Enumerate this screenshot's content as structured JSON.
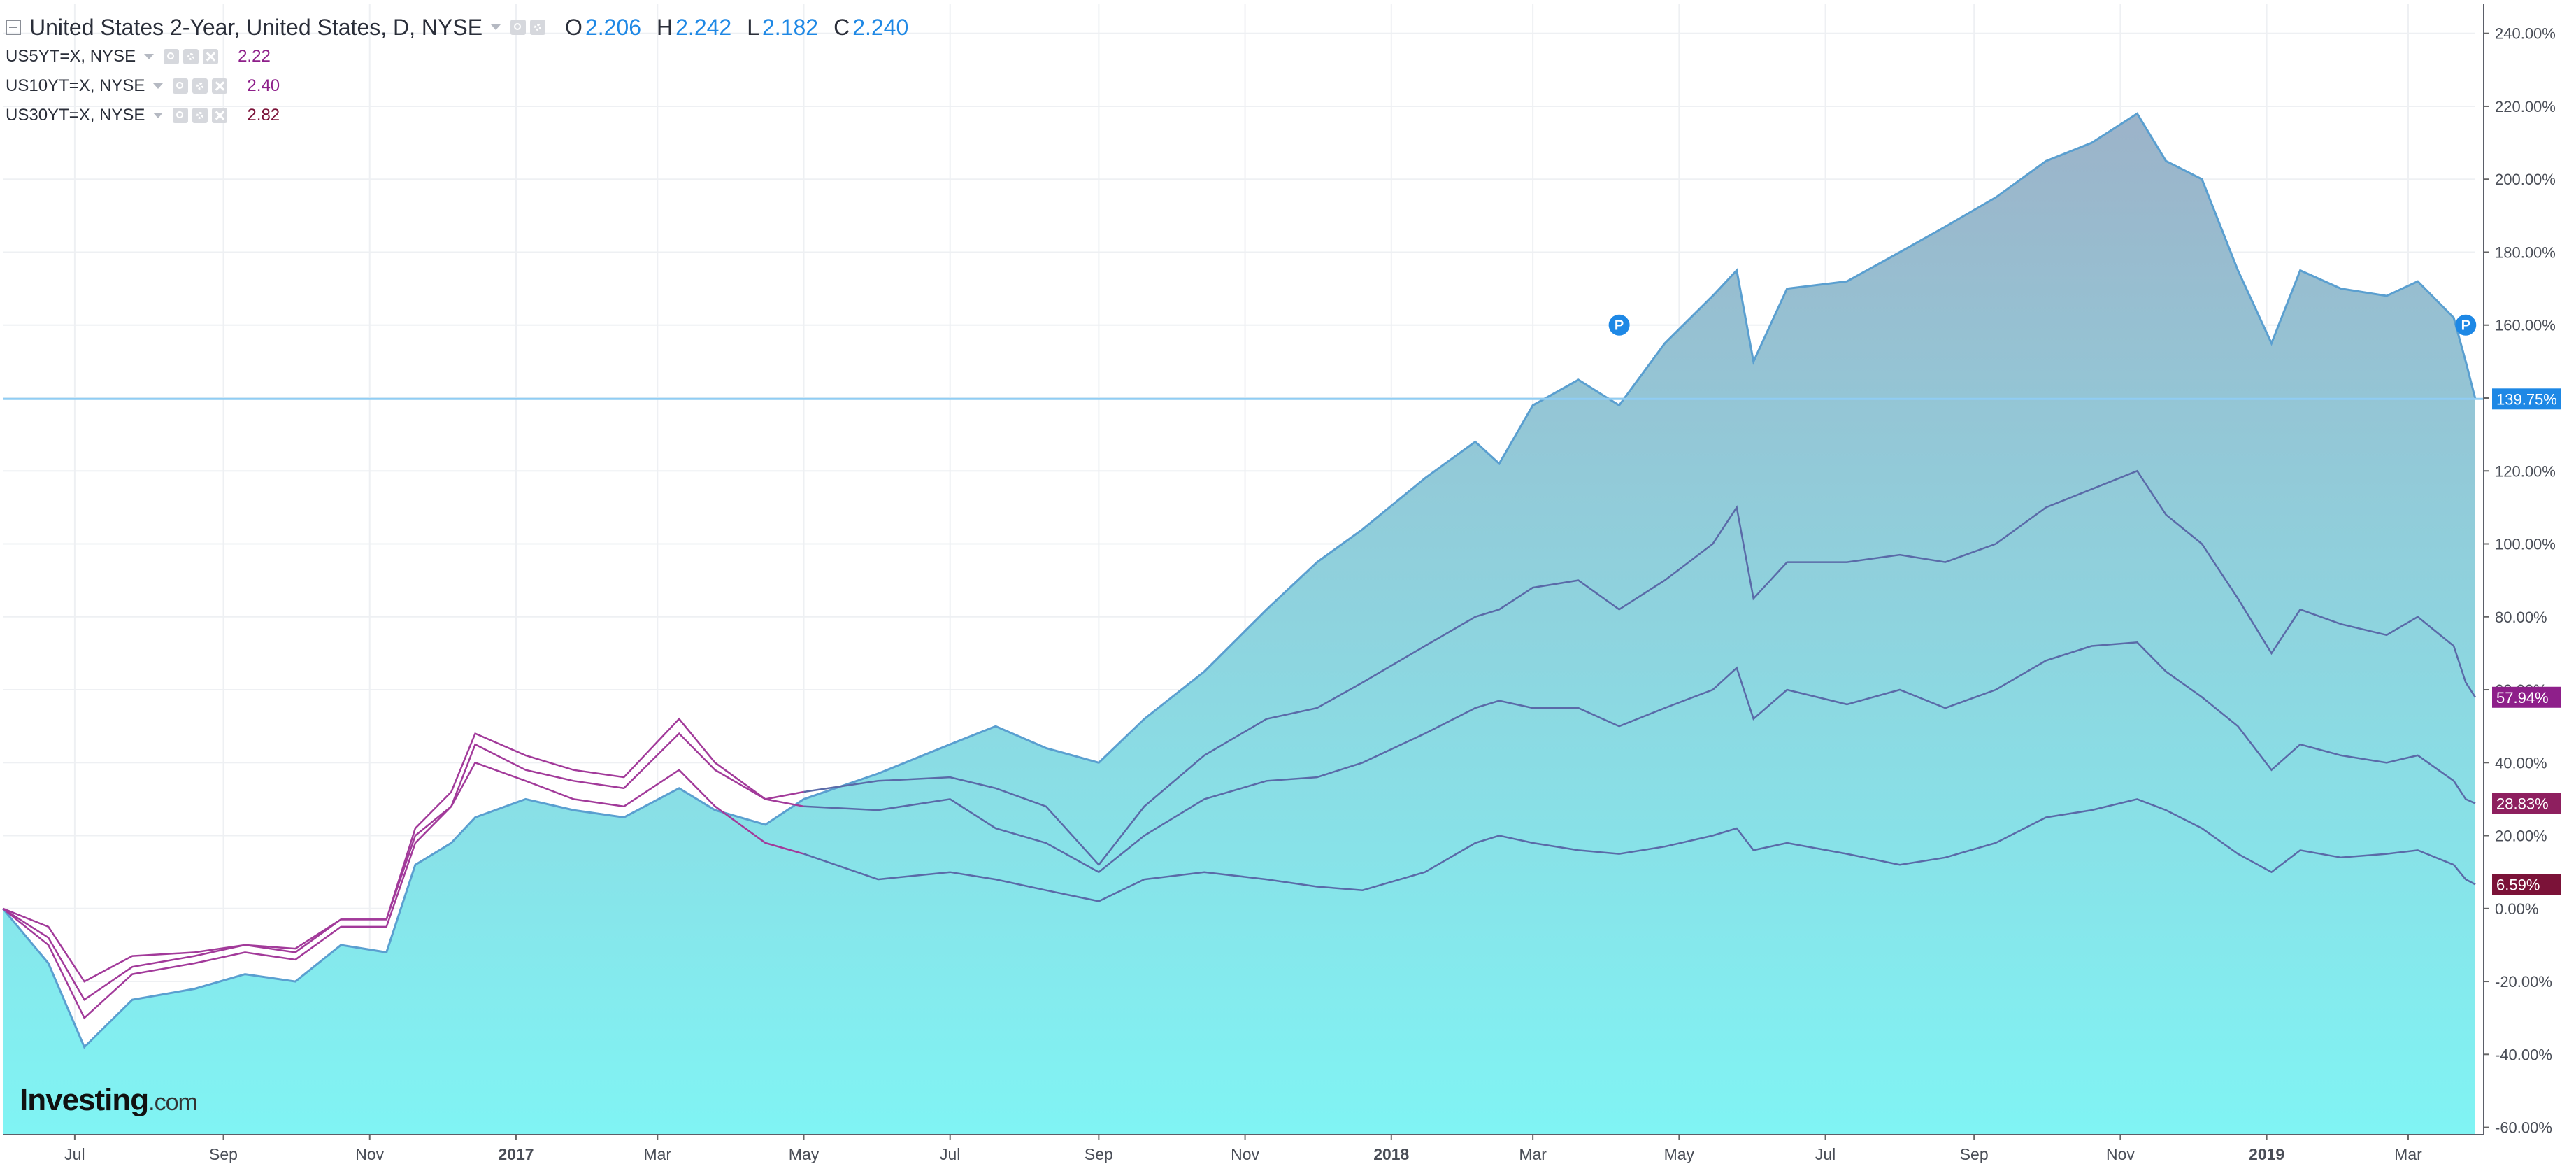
{
  "legend": {
    "main": {
      "title": "United States 2-Year, United States, D, NYSE",
      "o_label": "O",
      "o_value": "2.206",
      "h_label": "H",
      "h_value": "2.242",
      "l_label": "L",
      "l_value": "2.182",
      "c_label": "C",
      "c_value": "2.240"
    },
    "comparisons": [
      {
        "symbol": "US5YT=X, NYSE",
        "value": "2.22",
        "color": "#8e1f8a"
      },
      {
        "symbol": "US10YT=X, NYSE",
        "value": "2.40",
        "color": "#8e1f8a"
      },
      {
        "symbol": "US30YT=X, NYSE",
        "value": "2.82",
        "color": "#7b1238"
      }
    ]
  },
  "logo": {
    "main": "Investing",
    "suffix": ".com"
  },
  "colors": {
    "area_top": "#9cb3c9",
    "area_bottom": "#80f4f4",
    "main_line": "#5a9fd0",
    "comparison_line": "#5a6aa8",
    "comparison_line_early": "#a23a9a",
    "price_line": "#90cdf4",
    "badge_main": "#1e88e5",
    "badge_5y": "#8e1f8a",
    "badge_10y": "#8e1f5f",
    "badge_30y": "#7b1238",
    "grid": "#eef0f3",
    "axis_text": "#4a4e57"
  },
  "chart_data": {
    "type": "area",
    "x_range": [
      "2016-06-01",
      "2019-03-29"
    ],
    "x_ticks": [
      {
        "date": "2016-07-01",
        "label": "Jul",
        "bold": false
      },
      {
        "date": "2016-09-01",
        "label": "Sep",
        "bold": false
      },
      {
        "date": "2016-11-01",
        "label": "Nov",
        "bold": false
      },
      {
        "date": "2017-01-01",
        "label": "2017",
        "bold": true
      },
      {
        "date": "2017-03-01",
        "label": "Mar",
        "bold": false
      },
      {
        "date": "2017-05-01",
        "label": "May",
        "bold": false
      },
      {
        "date": "2017-07-01",
        "label": "Jul",
        "bold": false
      },
      {
        "date": "2017-09-01",
        "label": "Sep",
        "bold": false
      },
      {
        "date": "2017-11-01",
        "label": "Nov",
        "bold": false
      },
      {
        "date": "2018-01-01",
        "label": "2018",
        "bold": true
      },
      {
        "date": "2018-03-01",
        "label": "Mar",
        "bold": false
      },
      {
        "date": "2018-05-01",
        "label": "May",
        "bold": false
      },
      {
        "date": "2018-07-01",
        "label": "Jul",
        "bold": false
      },
      {
        "date": "2018-09-01",
        "label": "Sep",
        "bold": false
      },
      {
        "date": "2018-11-01",
        "label": "Nov",
        "bold": false
      },
      {
        "date": "2019-01-01",
        "label": "2019",
        "bold": true
      },
      {
        "date": "2019-03-01",
        "label": "Mar",
        "bold": false
      }
    ],
    "y_ticks": [
      "240.00%",
      "220.00%",
      "200.00%",
      "180.00%",
      "160.00%",
      "140.00%",
      "120.00%",
      "100.00%",
      "80.00%",
      "60.00%",
      "40.00%",
      "20.00%",
      "0.00%",
      "-20.00%",
      "-40.00%",
      "-60.00%"
    ],
    "y_tick_values": [
      240,
      220,
      200,
      180,
      160,
      140,
      120,
      100,
      80,
      60,
      40,
      20,
      0,
      -20,
      -40,
      -60
    ],
    "ylim": [
      -62,
      248
    ],
    "y_unit": "%",
    "series": [
      {
        "name": "United States 2-Year",
        "style": "area",
        "points": [
          [
            "2016-06-01",
            0
          ],
          [
            "2016-06-20",
            -15
          ],
          [
            "2016-07-05",
            -38
          ],
          [
            "2016-07-25",
            -25
          ],
          [
            "2016-08-20",
            -22
          ],
          [
            "2016-09-10",
            -18
          ],
          [
            "2016-10-01",
            -20
          ],
          [
            "2016-10-20",
            -10
          ],
          [
            "2016-11-08",
            -12
          ],
          [
            "2016-11-20",
            12
          ],
          [
            "2016-12-05",
            18
          ],
          [
            "2016-12-15",
            25
          ],
          [
            "2017-01-05",
            30
          ],
          [
            "2017-01-25",
            27
          ],
          [
            "2017-02-15",
            25
          ],
          [
            "2017-03-10",
            33
          ],
          [
            "2017-03-25",
            27
          ],
          [
            "2017-04-15",
            23
          ],
          [
            "2017-05-01",
            30
          ],
          [
            "2017-06-01",
            37
          ],
          [
            "2017-07-01",
            45
          ],
          [
            "2017-07-20",
            50
          ],
          [
            "2017-08-10",
            44
          ],
          [
            "2017-09-01",
            40
          ],
          [
            "2017-09-20",
            52
          ],
          [
            "2017-10-15",
            65
          ],
          [
            "2017-11-10",
            82
          ],
          [
            "2017-12-01",
            95
          ],
          [
            "2017-12-20",
            104
          ],
          [
            "2018-01-15",
            118
          ],
          [
            "2018-02-05",
            128
          ],
          [
            "2018-02-15",
            122
          ],
          [
            "2018-03-01",
            138
          ],
          [
            "2018-03-20",
            145
          ],
          [
            "2018-04-06",
            138
          ],
          [
            "2018-04-25",
            155
          ],
          [
            "2018-05-15",
            168
          ],
          [
            "2018-05-25",
            175
          ],
          [
            "2018-06-01",
            150
          ],
          [
            "2018-06-15",
            170
          ],
          [
            "2018-07-10",
            172
          ],
          [
            "2018-08-01",
            180
          ],
          [
            "2018-08-20",
            187
          ],
          [
            "2018-09-10",
            195
          ],
          [
            "2018-10-01",
            205
          ],
          [
            "2018-10-20",
            210
          ],
          [
            "2018-11-08",
            218
          ],
          [
            "2018-11-20",
            205
          ],
          [
            "2018-12-05",
            200
          ],
          [
            "2018-12-20",
            175
          ],
          [
            "2019-01-03",
            155
          ],
          [
            "2019-01-15",
            175
          ],
          [
            "2019-02-01",
            170
          ],
          [
            "2019-02-20",
            168
          ],
          [
            "2019-03-05",
            172
          ],
          [
            "2019-03-20",
            162
          ],
          [
            "2019-03-25",
            150
          ],
          [
            "2019-03-29",
            139.75
          ]
        ]
      },
      {
        "name": "US5YT=X",
        "style": "line",
        "points": [
          [
            "2016-06-01",
            0
          ],
          [
            "2016-06-20",
            -10
          ],
          [
            "2016-07-05",
            -30
          ],
          [
            "2016-07-25",
            -18
          ],
          [
            "2016-08-20",
            -15
          ],
          [
            "2016-09-10",
            -12
          ],
          [
            "2016-10-01",
            -14
          ],
          [
            "2016-10-20",
            -5
          ],
          [
            "2016-11-08",
            -5
          ],
          [
            "2016-11-20",
            18
          ],
          [
            "2016-12-05",
            28
          ],
          [
            "2016-12-15",
            45
          ],
          [
            "2017-01-05",
            38
          ],
          [
            "2017-01-25",
            35
          ],
          [
            "2017-02-15",
            33
          ],
          [
            "2017-03-10",
            48
          ],
          [
            "2017-03-25",
            38
          ],
          [
            "2017-04-15",
            30
          ],
          [
            "2017-05-01",
            32
          ],
          [
            "2017-06-01",
            35
          ],
          [
            "2017-07-01",
            36
          ],
          [
            "2017-07-20",
            33
          ],
          [
            "2017-08-10",
            28
          ],
          [
            "2017-09-01",
            12
          ],
          [
            "2017-09-20",
            28
          ],
          [
            "2017-10-15",
            42
          ],
          [
            "2017-11-10",
            52
          ],
          [
            "2017-12-01",
            55
          ],
          [
            "2017-12-20",
            62
          ],
          [
            "2018-01-15",
            72
          ],
          [
            "2018-02-05",
            80
          ],
          [
            "2018-02-15",
            82
          ],
          [
            "2018-03-01",
            88
          ],
          [
            "2018-03-20",
            90
          ],
          [
            "2018-04-06",
            82
          ],
          [
            "2018-04-25",
            90
          ],
          [
            "2018-05-15",
            100
          ],
          [
            "2018-05-25",
            110
          ],
          [
            "2018-06-01",
            85
          ],
          [
            "2018-06-15",
            95
          ],
          [
            "2018-07-10",
            95
          ],
          [
            "2018-08-01",
            97
          ],
          [
            "2018-08-20",
            95
          ],
          [
            "2018-09-10",
            100
          ],
          [
            "2018-10-01",
            110
          ],
          [
            "2018-10-20",
            115
          ],
          [
            "2018-11-08",
            120
          ],
          [
            "2018-11-20",
            108
          ],
          [
            "2018-12-05",
            100
          ],
          [
            "2018-12-20",
            85
          ],
          [
            "2019-01-03",
            70
          ],
          [
            "2019-01-15",
            82
          ],
          [
            "2019-02-01",
            78
          ],
          [
            "2019-02-20",
            75
          ],
          [
            "2019-03-05",
            80
          ],
          [
            "2019-03-20",
            72
          ],
          [
            "2019-03-25",
            62
          ],
          [
            "2019-03-29",
            57.94
          ]
        ]
      },
      {
        "name": "US10YT=X",
        "style": "line",
        "points": [
          [
            "2016-06-01",
            0
          ],
          [
            "2016-06-20",
            -8
          ],
          [
            "2016-07-05",
            -25
          ],
          [
            "2016-07-25",
            -16
          ],
          [
            "2016-08-20",
            -13
          ],
          [
            "2016-09-10",
            -10
          ],
          [
            "2016-10-01",
            -12
          ],
          [
            "2016-10-20",
            -3
          ],
          [
            "2016-11-08",
            -3
          ],
          [
            "2016-11-20",
            22
          ],
          [
            "2016-12-05",
            32
          ],
          [
            "2016-12-15",
            48
          ],
          [
            "2017-01-05",
            42
          ],
          [
            "2017-01-25",
            38
          ],
          [
            "2017-02-15",
            36
          ],
          [
            "2017-03-10",
            52
          ],
          [
            "2017-03-25",
            40
          ],
          [
            "2017-04-15",
            30
          ],
          [
            "2017-05-01",
            28
          ],
          [
            "2017-06-01",
            27
          ],
          [
            "2017-07-01",
            30
          ],
          [
            "2017-07-20",
            22
          ],
          [
            "2017-08-10",
            18
          ],
          [
            "2017-09-01",
            10
          ],
          [
            "2017-09-20",
            20
          ],
          [
            "2017-10-15",
            30
          ],
          [
            "2017-11-10",
            35
          ],
          [
            "2017-12-01",
            36
          ],
          [
            "2017-12-20",
            40
          ],
          [
            "2018-01-15",
            48
          ],
          [
            "2018-02-05",
            55
          ],
          [
            "2018-02-15",
            57
          ],
          [
            "2018-03-01",
            55
          ],
          [
            "2018-03-20",
            55
          ],
          [
            "2018-04-06",
            50
          ],
          [
            "2018-04-25",
            55
          ],
          [
            "2018-05-15",
            60
          ],
          [
            "2018-05-25",
            66
          ],
          [
            "2018-06-01",
            52
          ],
          [
            "2018-06-15",
            60
          ],
          [
            "2018-07-10",
            56
          ],
          [
            "2018-08-01",
            60
          ],
          [
            "2018-08-20",
            55
          ],
          [
            "2018-09-10",
            60
          ],
          [
            "2018-10-01",
            68
          ],
          [
            "2018-10-20",
            72
          ],
          [
            "2018-11-08",
            73
          ],
          [
            "2018-11-20",
            65
          ],
          [
            "2018-12-05",
            58
          ],
          [
            "2018-12-20",
            50
          ],
          [
            "2019-01-03",
            38
          ],
          [
            "2019-01-15",
            45
          ],
          [
            "2019-02-01",
            42
          ],
          [
            "2019-02-20",
            40
          ],
          [
            "2019-03-05",
            42
          ],
          [
            "2019-03-20",
            35
          ],
          [
            "2019-03-25",
            30
          ],
          [
            "2019-03-29",
            28.83
          ]
        ]
      },
      {
        "name": "US30YT=X",
        "style": "line",
        "points": [
          [
            "2016-06-01",
            0
          ],
          [
            "2016-06-20",
            -5
          ],
          [
            "2016-07-05",
            -20
          ],
          [
            "2016-07-25",
            -13
          ],
          [
            "2016-08-20",
            -12
          ],
          [
            "2016-09-10",
            -10
          ],
          [
            "2016-10-01",
            -11
          ],
          [
            "2016-10-20",
            -3
          ],
          [
            "2016-11-08",
            -3
          ],
          [
            "2016-11-20",
            20
          ],
          [
            "2016-12-05",
            28
          ],
          [
            "2016-12-15",
            40
          ],
          [
            "2017-01-05",
            35
          ],
          [
            "2017-01-25",
            30
          ],
          [
            "2017-02-15",
            28
          ],
          [
            "2017-03-10",
            38
          ],
          [
            "2017-03-25",
            28
          ],
          [
            "2017-04-15",
            18
          ],
          [
            "2017-05-01",
            15
          ],
          [
            "2017-06-01",
            8
          ],
          [
            "2017-07-01",
            10
          ],
          [
            "2017-07-20",
            8
          ],
          [
            "2017-08-10",
            5
          ],
          [
            "2017-09-01",
            2
          ],
          [
            "2017-09-20",
            8
          ],
          [
            "2017-10-15",
            10
          ],
          [
            "2017-11-10",
            8
          ],
          [
            "2017-12-01",
            6
          ],
          [
            "2017-12-20",
            5
          ],
          [
            "2018-01-15",
            10
          ],
          [
            "2018-02-05",
            18
          ],
          [
            "2018-02-15",
            20
          ],
          [
            "2018-03-01",
            18
          ],
          [
            "2018-03-20",
            16
          ],
          [
            "2018-04-06",
            15
          ],
          [
            "2018-04-25",
            17
          ],
          [
            "2018-05-15",
            20
          ],
          [
            "2018-05-25",
            22
          ],
          [
            "2018-06-01",
            16
          ],
          [
            "2018-06-15",
            18
          ],
          [
            "2018-07-10",
            15
          ],
          [
            "2018-08-01",
            12
          ],
          [
            "2018-08-20",
            14
          ],
          [
            "2018-09-10",
            18
          ],
          [
            "2018-10-01",
            25
          ],
          [
            "2018-10-20",
            27
          ],
          [
            "2018-11-08",
            30
          ],
          [
            "2018-11-20",
            27
          ],
          [
            "2018-12-05",
            22
          ],
          [
            "2018-12-20",
            15
          ],
          [
            "2019-01-03",
            10
          ],
          [
            "2019-01-15",
            16
          ],
          [
            "2019-02-01",
            14
          ],
          [
            "2019-02-20",
            15
          ],
          [
            "2019-03-05",
            16
          ],
          [
            "2019-03-20",
            12
          ],
          [
            "2019-03-25",
            8
          ],
          [
            "2019-03-29",
            6.59
          ]
        ]
      }
    ],
    "price_badges": [
      {
        "label": "139.75%",
        "value": 139.75,
        "color": "#1e88e5"
      },
      {
        "label": "57.94%",
        "value": 57.94,
        "color": "#8e1f8a"
      },
      {
        "label": "28.83%",
        "value": 28.83,
        "color": "#8e1f5f"
      },
      {
        "label": "6.59%",
        "value": 6.59,
        "color": "#7b1238"
      }
    ],
    "horizontal_line": 139.75,
    "markers": [
      {
        "date": "2018-04-06",
        "value": 160,
        "label": "P"
      },
      {
        "date": "2019-03-25",
        "value": 160,
        "label": "P"
      }
    ]
  }
}
